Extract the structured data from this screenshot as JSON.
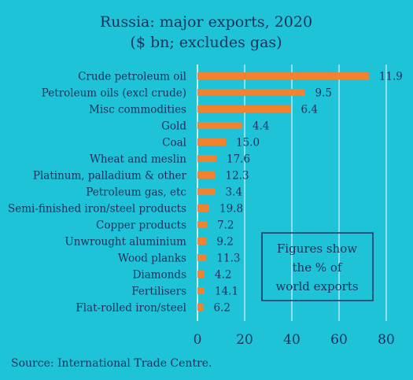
{
  "chart_data": {
    "type": "bar",
    "orientation": "horizontal",
    "title": "Russia: major exports, 2020",
    "subtitle": "($ bn; excludes gas)",
    "categories": [
      "Crude petroleum oil",
      "Petroleum oils (excl crude)",
      "Misc commodities",
      "Gold",
      "Coal",
      "Wheat and meslin",
      "Platinum, palladium & other",
      "Petroleum gas, etc",
      "Semi-finished iron/steel products",
      "Copper products",
      "Unwrought aluminium",
      "Wood planks",
      "Diamonds",
      "Fertilisers",
      "Flat-rolled iron/steel"
    ],
    "values": [
      72.6,
      45.5,
      39.5,
      19.0,
      12.0,
      8.0,
      7.5,
      7.5,
      5.0,
      4.0,
      3.8,
      3.8,
      3.0,
      3.0,
      2.5
    ],
    "labels": [
      "11.9",
      "9.5",
      "6.4",
      "4.4",
      "15.0",
      "17.6",
      "12.3",
      "3.4",
      "19.8",
      "7.2",
      "9.2",
      "11.3",
      "4.2",
      "14.1",
      "6.2"
    ],
    "xlim": [
      0,
      80
    ],
    "xticks": [
      "0",
      "20",
      "40",
      "60",
      "80"
    ],
    "grid": "vertical",
    "note": [
      "Figures show",
      "the % of",
      "world exports"
    ],
    "source": "Source: International Trade Centre."
  },
  "colors": {
    "background": "#1ec3d8",
    "bar": "#f2822f",
    "grid": "#ffffff",
    "text": "#1a2f5a"
  }
}
